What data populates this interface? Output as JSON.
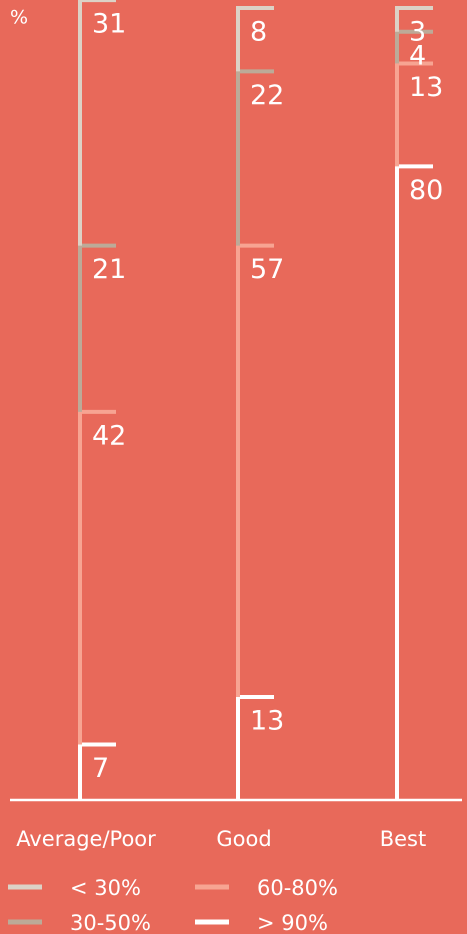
{
  "chart_data": {
    "type": "bar",
    "stacked": true,
    "y_label": "%",
    "categories": [
      "Average/Poor",
      "Good",
      "Best"
    ],
    "series": [
      {
        "name": "< 30%",
        "color": "#dcd2c6",
        "values": [
          31,
          8,
          3
        ]
      },
      {
        "name": "30-50%",
        "color": "#bcaa98",
        "values": [
          21,
          22,
          4
        ]
      },
      {
        "name": "60-80%",
        "color": "#f7a492",
        "values": [
          42,
          57,
          13
        ]
      },
      {
        "name": "> 90%",
        "color": "#ffffff",
        "values": [
          7,
          13,
          80
        ]
      }
    ],
    "ylim": [
      0,
      100
    ]
  }
}
